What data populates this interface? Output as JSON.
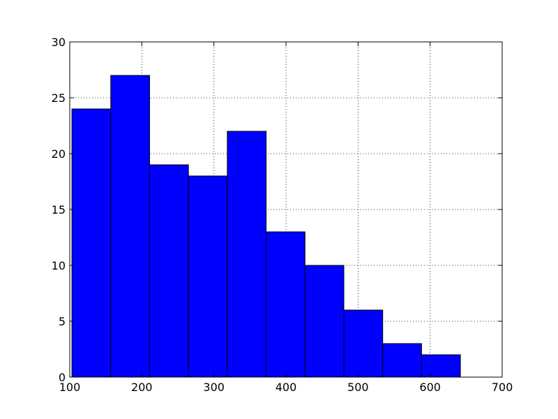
{
  "chart_data": {
    "type": "bar",
    "subtype": "histogram",
    "bins": [
      {
        "x0": 103,
        "x1": 156.9,
        "value": 24
      },
      {
        "x0": 156.9,
        "x1": 210.8,
        "value": 27
      },
      {
        "x0": 210.8,
        "x1": 264.7,
        "value": 19
      },
      {
        "x0": 264.7,
        "x1": 318.6,
        "value": 18
      },
      {
        "x0": 318.6,
        "x1": 372.5,
        "value": 22
      },
      {
        "x0": 372.5,
        "x1": 426.4,
        "value": 13
      },
      {
        "x0": 426.4,
        "x1": 480.3,
        "value": 10
      },
      {
        "x0": 480.3,
        "x1": 534.2,
        "value": 6
      },
      {
        "x0": 534.2,
        "x1": 588.1,
        "value": 3
      },
      {
        "x0": 588.1,
        "x1": 642,
        "value": 2
      }
    ],
    "xlim": [
      100,
      700
    ],
    "ylim": [
      0,
      30
    ],
    "xticks": [
      100,
      200,
      300,
      400,
      500,
      600,
      700
    ],
    "yticks": [
      0,
      5,
      10,
      15,
      20,
      25,
      30
    ],
    "title": "",
    "xlabel": "",
    "ylabel": "",
    "grid": true,
    "bar_color": "#0000ff",
    "edge_color": "#000000"
  }
}
